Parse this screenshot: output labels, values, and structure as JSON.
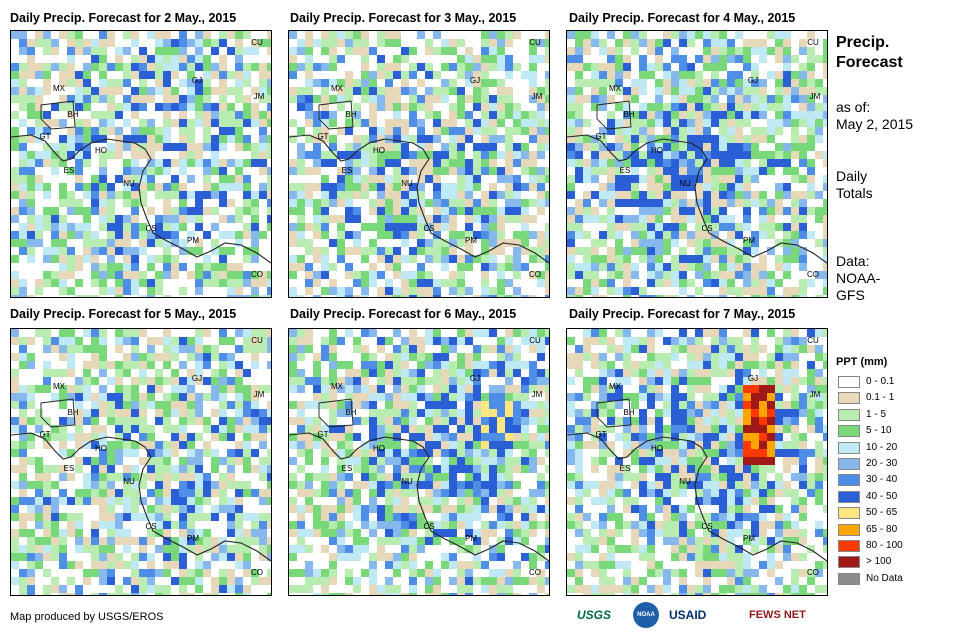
{
  "panels": [
    {
      "title": "Daily Precip. Forecast for 2 May., 2015"
    },
    {
      "title": "Daily Precip. Forecast for 3 May., 2015"
    },
    {
      "title": "Daily Precip. Forecast for 4 May., 2015"
    },
    {
      "title": "Daily Precip. Forecast for 5 May., 2015"
    },
    {
      "title": "Daily Precip. Forecast for 6 May., 2015"
    },
    {
      "title": "Daily Precip. Forecast for 7 May., 2015"
    }
  ],
  "country_labels": [
    "MX",
    "BH",
    "GT",
    "HO",
    "ES",
    "NU",
    "CS",
    "PM",
    "CO",
    "CU",
    "JM",
    "GJ"
  ],
  "info": {
    "title_line1": "Precip.",
    "title_line2": "Forecast",
    "asof_line1": "as of:",
    "asof_line2": "May 2, 2015",
    "totals_line1": "Daily",
    "totals_line2": "Totals",
    "data_line1": "Data:",
    "data_line2": "NOAA-",
    "data_line3": "GFS"
  },
  "legend": {
    "title": "PPT (mm)",
    "items": [
      {
        "label": "0 - 0.1",
        "color": "#ffffff"
      },
      {
        "label": "0.1 - 1",
        "color": "#e6d8b8"
      },
      {
        "label": "1 - 5",
        "color": "#b9ecb0"
      },
      {
        "label": "5 - 10",
        "color": "#78d87a"
      },
      {
        "label": "10 - 20",
        "color": "#bfeaf5"
      },
      {
        "label": "20 - 30",
        "color": "#86b8ee"
      },
      {
        "label": "30 - 40",
        "color": "#4f8ee6"
      },
      {
        "label": "40 - 50",
        "color": "#2b5fd6"
      },
      {
        "label": "50 - 65",
        "color": "#ffe680"
      },
      {
        "label": "65 - 80",
        "color": "#ffa500"
      },
      {
        "label": "80 - 100",
        "color": "#ff3a00"
      },
      {
        "label": "> 100",
        "color": "#a01818"
      },
      {
        "label": "No Data",
        "color": "#8c8c8c"
      }
    ]
  },
  "footer": {
    "credit": "Map produced by USGS/EROS",
    "logos": [
      "USGS",
      "NOAA",
      "USAID",
      "FEWS NET"
    ]
  }
}
